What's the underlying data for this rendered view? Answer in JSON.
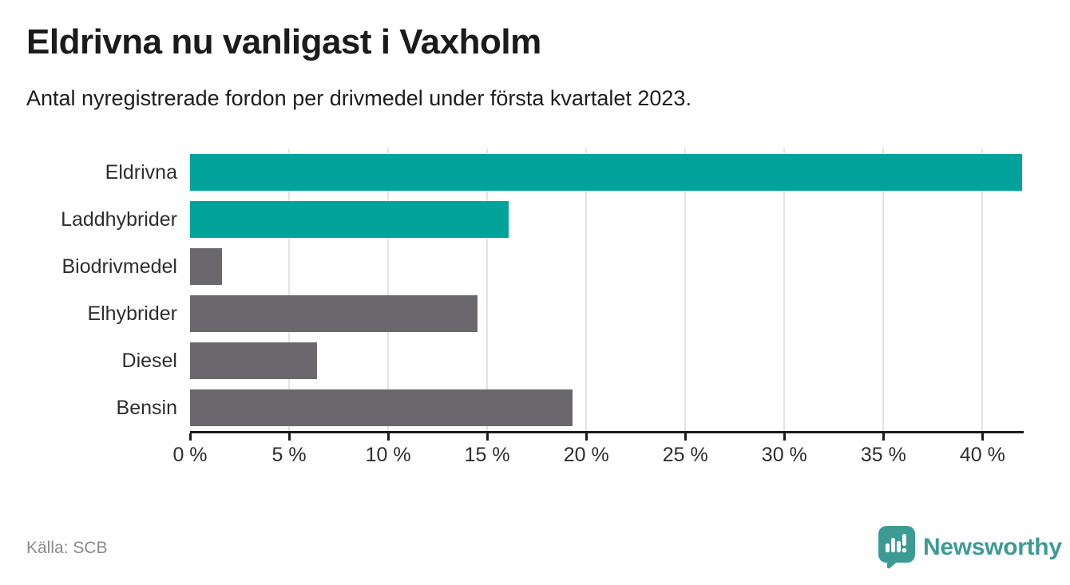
{
  "header": {
    "title": "Eldrivna nu vanligast i Vaxholm",
    "subtitle": "Antal nyregistrerade fordon per drivmedel under första kvartalet 2023."
  },
  "footer": {
    "source_label": "Källa: SCB",
    "brand_label": "Newsworthy",
    "brand_icon": "newsworthy-speech-bubble-bar-chart-icon"
  },
  "colors": {
    "highlight": "#00a29a",
    "default": "#6a676d",
    "brand": "#3d9b95",
    "gridline": "#e3e3e3",
    "axis": "#1c1c1c",
    "title_text": "#1b1b1b",
    "tick_text": "#2e2e2e",
    "source_text": "#8a8a8a"
  },
  "chart_data": {
    "type": "bar",
    "orientation": "horizontal",
    "title": "Eldrivna nu vanligast i Vaxholm",
    "subtitle": "Antal nyregistrerade fordon per drivmedel under första kvartalet 2023.",
    "categories": [
      "Eldrivna",
      "Laddhybrider",
      "Biodrivmedel",
      "Elhybrider",
      "Diesel",
      "Bensin"
    ],
    "values": [
      42,
      16.1,
      1.6,
      14.5,
      6.4,
      19.3
    ],
    "bar_colors": [
      "highlight",
      "highlight",
      "default",
      "default",
      "default",
      "default"
    ],
    "unit": "%",
    "xlabel": "",
    "ylabel": "",
    "xlim": [
      0,
      42
    ],
    "xticks": [
      0,
      5,
      10,
      15,
      20,
      25,
      30,
      35,
      40
    ],
    "xtick_labels": [
      "0 %",
      "5 %",
      "10 %",
      "15 %",
      "20 %",
      "25 %",
      "30 %",
      "35 %",
      "40 %"
    ],
    "grid": "vertical",
    "legend": "none",
    "source": "Källa: SCB"
  }
}
